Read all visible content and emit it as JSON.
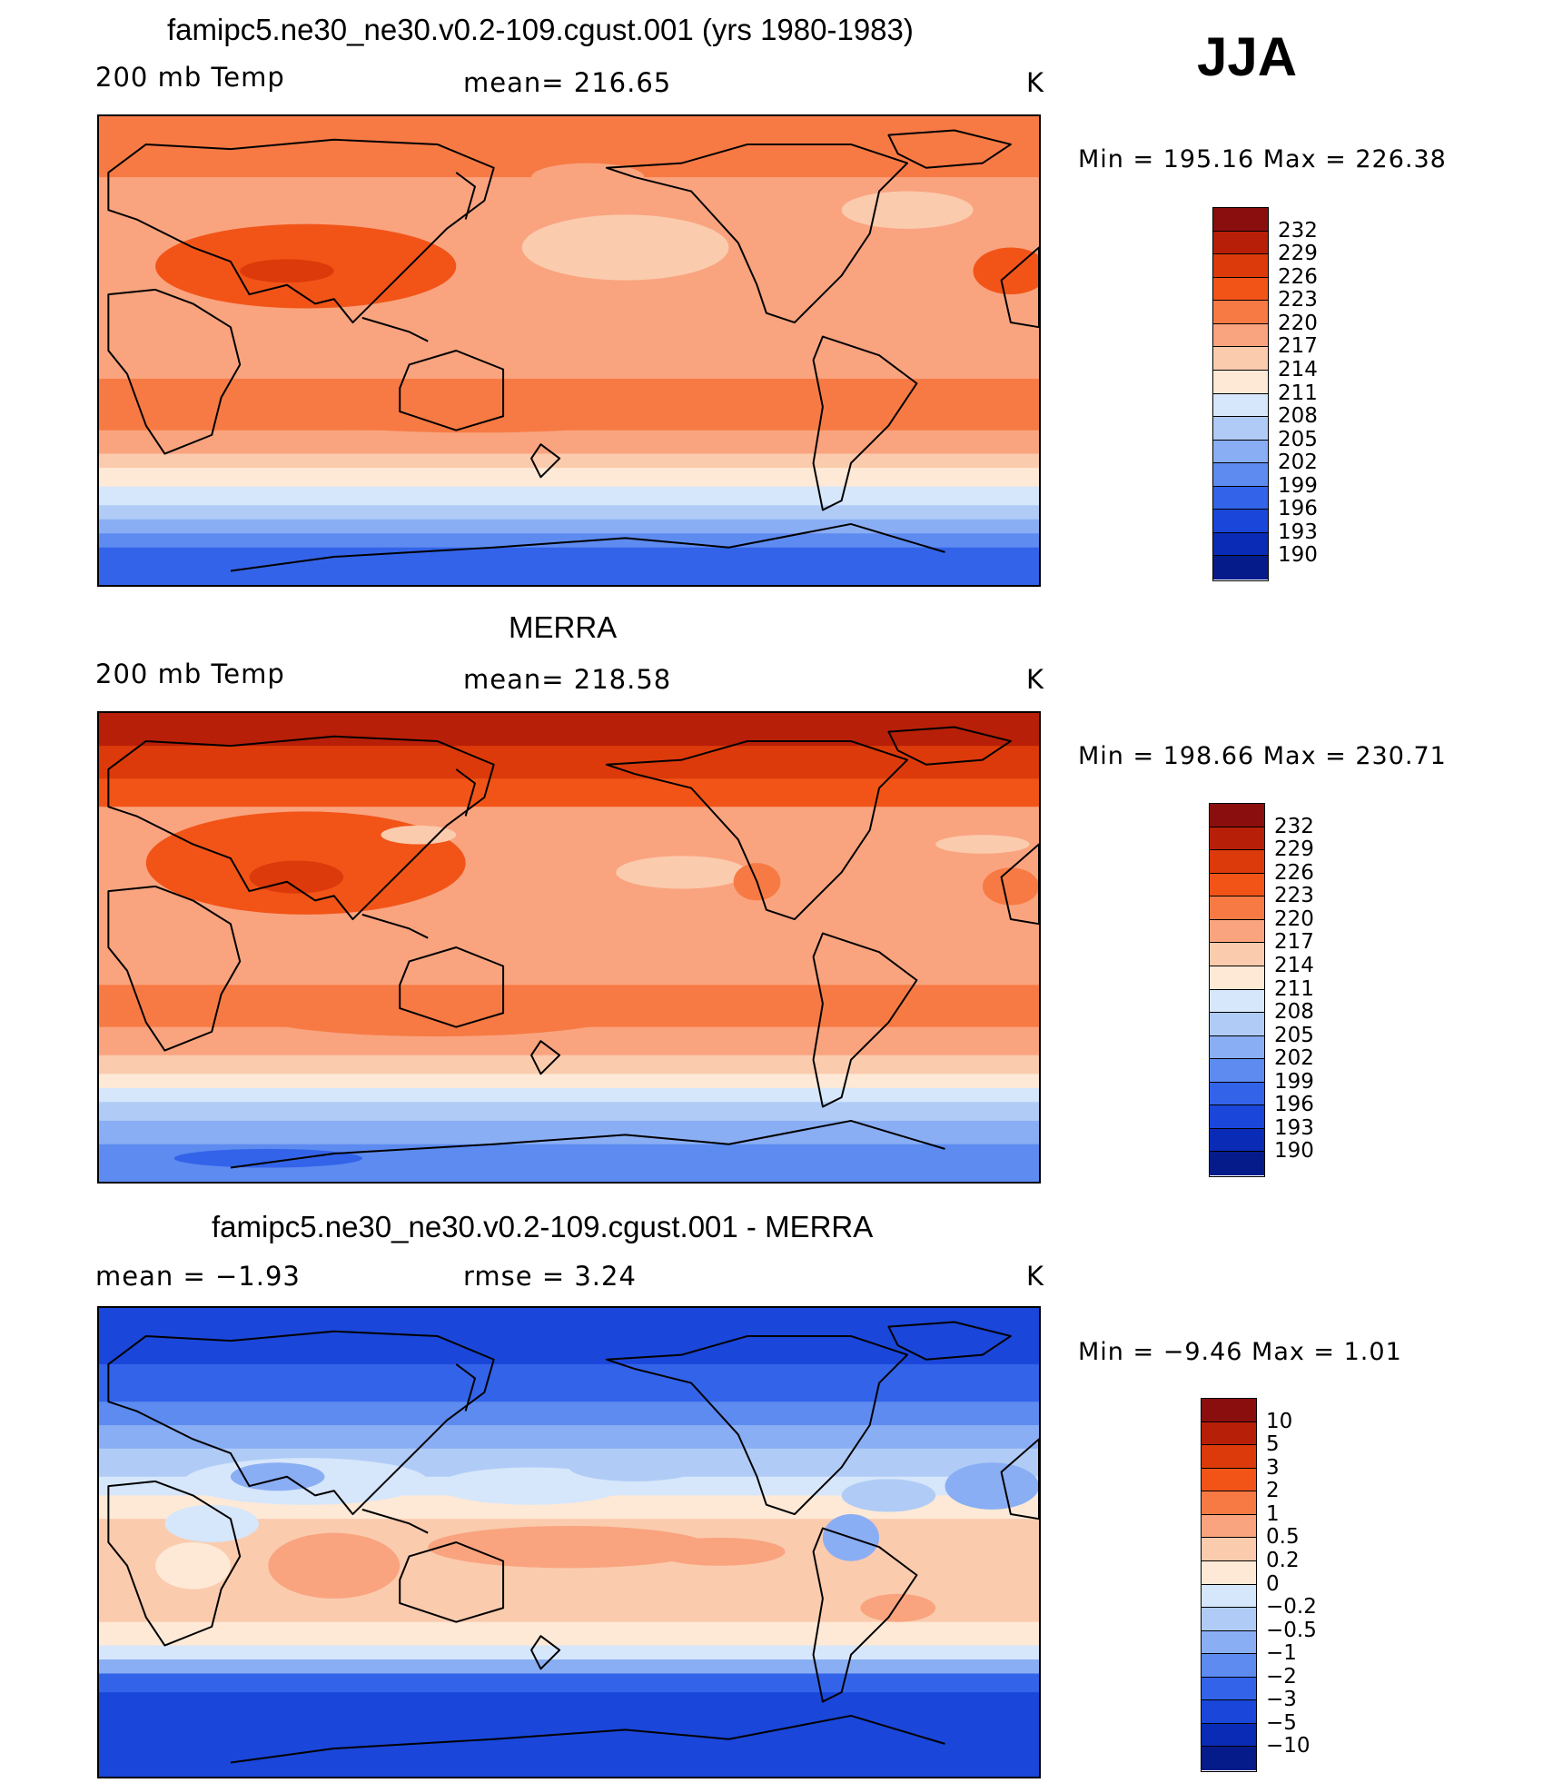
{
  "season": "JJA",
  "panels": [
    {
      "title": "famipc5.ne30_ne30.v0.2-109.cgust.001 (yrs 1980-1983)",
      "left_label": "200 mb Temp",
      "center_label": "mean= 216.65",
      "right_label": "K",
      "minmax": "Min = 195.16 Max = 226.38",
      "map_type": "model",
      "colorbar": {
        "labels": [
          "232",
          "229",
          "226",
          "223",
          "220",
          "217",
          "214",
          "211",
          "208",
          "205",
          "202",
          "199",
          "196",
          "193",
          "190"
        ],
        "colors": [
          "#8b0e0e",
          "#b81f08",
          "#dc3a0a",
          "#f25418",
          "#f77a45",
          "#f9a47f",
          "#fbcbae",
          "#fde9d6",
          "#d6e6fb",
          "#b0ccf6",
          "#8aaef4",
          "#5d8bf0",
          "#3363e8",
          "#1a46d9",
          "#0a2bb5",
          "#061b8a"
        ]
      }
    },
    {
      "title": "MERRA",
      "left_label": "200 mb Temp",
      "center_label": "mean= 218.58",
      "right_label": "K",
      "minmax": "Min = 198.66 Max = 230.71",
      "map_type": "obs",
      "colorbar": {
        "labels": [
          "232",
          "229",
          "226",
          "223",
          "220",
          "217",
          "214",
          "211",
          "208",
          "205",
          "202",
          "199",
          "196",
          "193",
          "190"
        ],
        "colors": [
          "#8b0e0e",
          "#b81f08",
          "#dc3a0a",
          "#f25418",
          "#f77a45",
          "#f9a47f",
          "#fbcbae",
          "#fde9d6",
          "#d6e6fb",
          "#b0ccf6",
          "#8aaef4",
          "#5d8bf0",
          "#3363e8",
          "#1a46d9",
          "#0a2bb5",
          "#061b8a"
        ]
      }
    },
    {
      "title": "famipc5.ne30_ne30.v0.2-109.cgust.001 - MERRA",
      "left_label": "mean =  −1.93",
      "center_label": "rmse =   3.24",
      "right_label": "K",
      "minmax": "Min =  −9.46 Max =   1.01",
      "map_type": "diff",
      "colorbar": {
        "labels": [
          "10",
          "5",
          "3",
          "2",
          "1",
          "0.5",
          "0.2",
          "0",
          "−0.2",
          "−0.5",
          "−1",
          "−2",
          "−3",
          "−5",
          "−10"
        ],
        "colors": [
          "#8b0e0e",
          "#b81f08",
          "#dc3a0a",
          "#f25418",
          "#f77a45",
          "#f9a47f",
          "#fbcbae",
          "#fde9d6",
          "#d6e6fb",
          "#b0ccf6",
          "#8aaef4",
          "#5d8bf0",
          "#3363e8",
          "#1a46d9",
          "#0a2bb5",
          "#061b8a"
        ]
      }
    }
  ]
}
